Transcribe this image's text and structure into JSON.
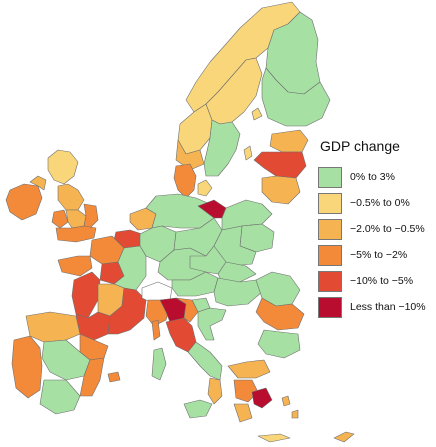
{
  "legend": {
    "title": "GDP change",
    "items": [
      {
        "label": "0% to 3%",
        "color": "#a6e0a3"
      },
      {
        "label": "−0.5% to 0%",
        "color": "#f9d67a"
      },
      {
        "label": "−2.0% to −0.5%",
        "color": "#f6b352"
      },
      {
        "label": "−5% to −2%",
        "color": "#f28a3a"
      },
      {
        "label": "−10% to −5%",
        "color": "#e34a33"
      },
      {
        "label": "Less than −10%",
        "color": "#b80d2e"
      }
    ]
  }
}
